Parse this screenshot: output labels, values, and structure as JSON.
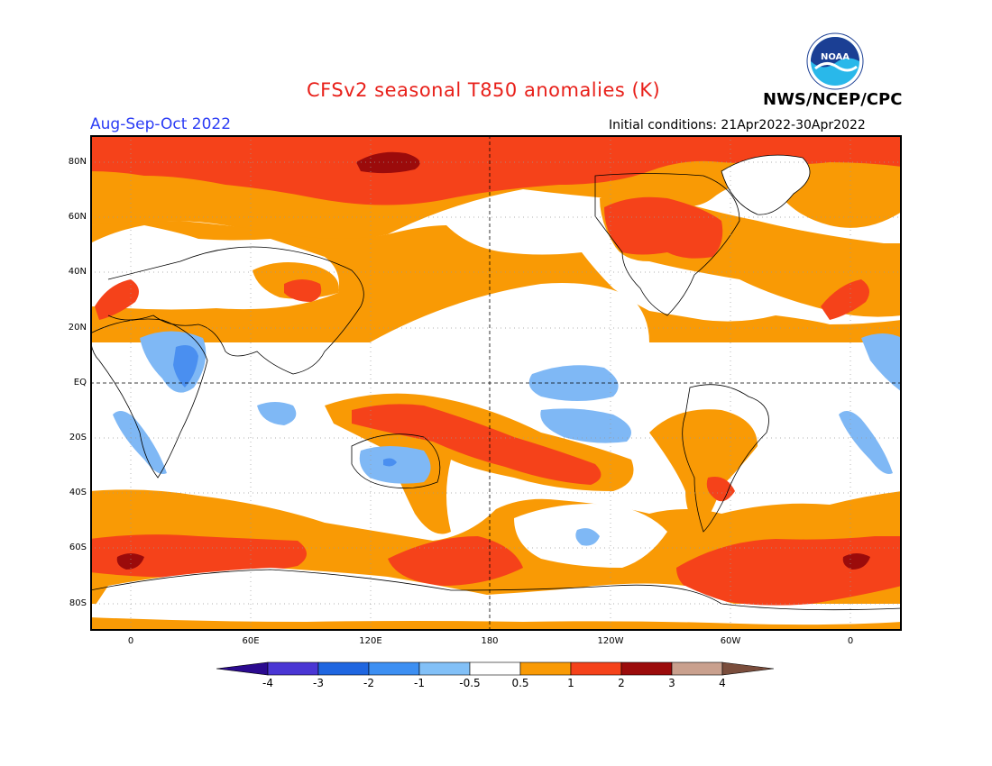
{
  "header": {
    "title": "CFSv2 seasonal T850 anomalies (K)",
    "period": "Aug-Sep-Oct 2022",
    "agency": "NWS/NCEP/CPC",
    "initial_conditions": "Initial conditions: 21Apr2022-30Apr2022",
    "logo_text": "NOAA"
  },
  "map": {
    "lat_labels": [
      "80N",
      "60N",
      "40N",
      "20N",
      "EQ",
      "20S",
      "40S",
      "60S",
      "80S"
    ],
    "lon_labels": [
      "0",
      "60E",
      "120E",
      "180",
      "120W",
      "60W",
      "0"
    ],
    "colors": {
      "strong_warm": "#9b0b0b",
      "warm2": "#f5421a",
      "warm1": "#f99a05",
      "neutral": "#ffffff",
      "cool1": "#7fb8f5",
      "cool2": "#4a8ff0"
    }
  },
  "colorbar": {
    "labels": [
      "-4",
      "-3",
      "-2",
      "-1",
      "-0.5",
      "0.5",
      "1",
      "2",
      "3",
      "4"
    ],
    "colors": [
      "#2b0a8f",
      "#4a36d4",
      "#1f66e0",
      "#3d8ff2",
      "#82c0f7",
      "#ffffff",
      "#f99a05",
      "#f5421a",
      "#9b0b0b",
      "#c9a08e",
      "#7a4d3c"
    ]
  }
}
